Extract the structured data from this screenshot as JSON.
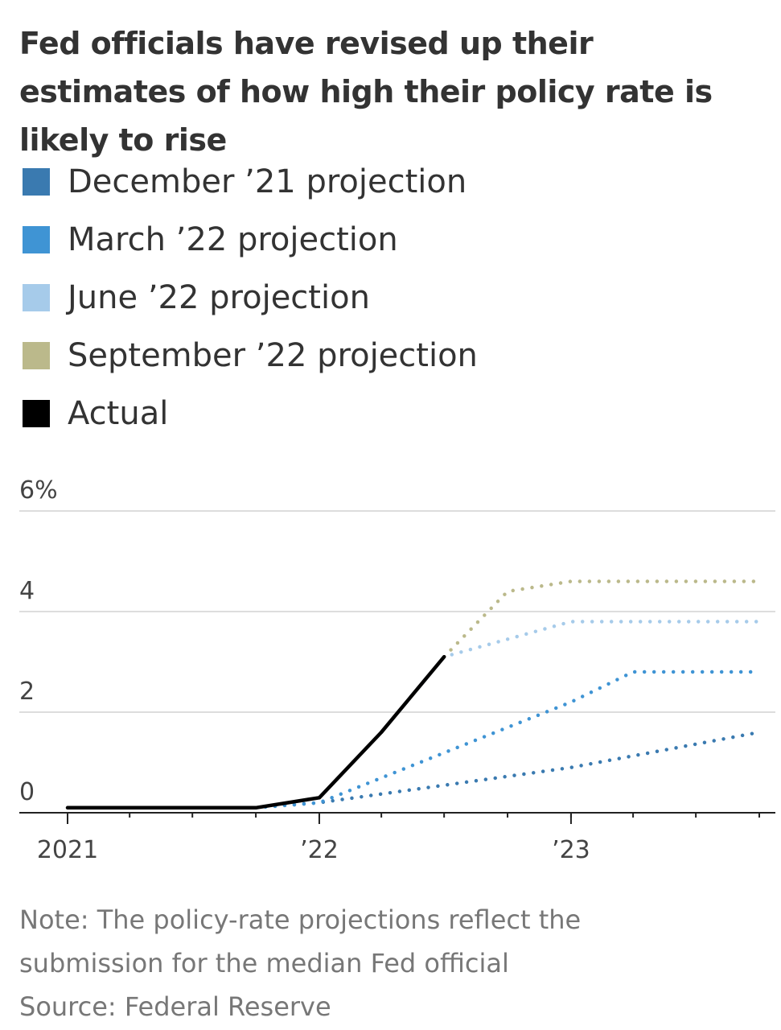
{
  "title": "Fed officials have revised up their estimates of how high their policy rate is likely to rise",
  "note_line1": "Note: The policy-rate projections reflect the",
  "note_line2": "submission for the median Fed official",
  "source": "Source: Federal Reserve",
  "chart_data": {
    "type": "line",
    "ylim": [
      0,
      6
    ],
    "y_ticks": [
      {
        "value": 0,
        "label": "0"
      },
      {
        "value": 2,
        "label": "2"
      },
      {
        "value": 4,
        "label": "4"
      },
      {
        "value": 6,
        "label": "6%"
      }
    ],
    "xlim": [
      "2021-01-01",
      "2023-10-01"
    ],
    "x_ticks": [
      {
        "date": "2021-01-01",
        "label": "2021"
      },
      {
        "date": "2022-01-01",
        "label": "’22"
      },
      {
        "date": "2023-01-01",
        "label": "’23"
      }
    ],
    "grid": true,
    "legend_position": "top",
    "series": [
      {
        "name": "December ’21 projection",
        "color": "#3a7ab0",
        "style": "dotted",
        "points": [
          [
            "2021-10-01",
            0.1
          ],
          [
            "2022-01-01",
            0.2
          ],
          [
            "2023-01-01",
            0.9
          ],
          [
            "2023-10-01",
            1.6
          ]
        ]
      },
      {
        "name": "March ’22 projection",
        "color": "#3f94d4",
        "style": "dotted",
        "points": [
          [
            "2021-10-01",
            0.1
          ],
          [
            "2022-01-01",
            0.2
          ],
          [
            "2023-01-01",
            2.2
          ],
          [
            "2023-04-01",
            2.8
          ],
          [
            "2023-10-01",
            2.8
          ]
        ]
      },
      {
        "name": "June ’22 projection",
        "color": "#a6cbea",
        "style": "dotted",
        "points": [
          [
            "2022-04-01",
            1.6
          ],
          [
            "2022-07-01",
            3.1
          ],
          [
            "2023-01-01",
            3.8
          ],
          [
            "2023-10-01",
            3.8
          ]
        ]
      },
      {
        "name": "September ’22 projection",
        "color": "#bbb98b",
        "style": "dotted",
        "points": [
          [
            "2022-07-01",
            3.1
          ],
          [
            "2022-10-01",
            4.4
          ],
          [
            "2023-01-01",
            4.6
          ],
          [
            "2023-10-01",
            4.6
          ]
        ]
      },
      {
        "name": "Actual",
        "color": "#000000",
        "style": "solid",
        "points": [
          [
            "2021-01-01",
            0.1
          ],
          [
            "2021-10-01",
            0.1
          ],
          [
            "2022-01-01",
            0.3
          ],
          [
            "2022-04-01",
            1.6
          ],
          [
            "2022-07-01",
            3.1
          ]
        ]
      }
    ]
  }
}
